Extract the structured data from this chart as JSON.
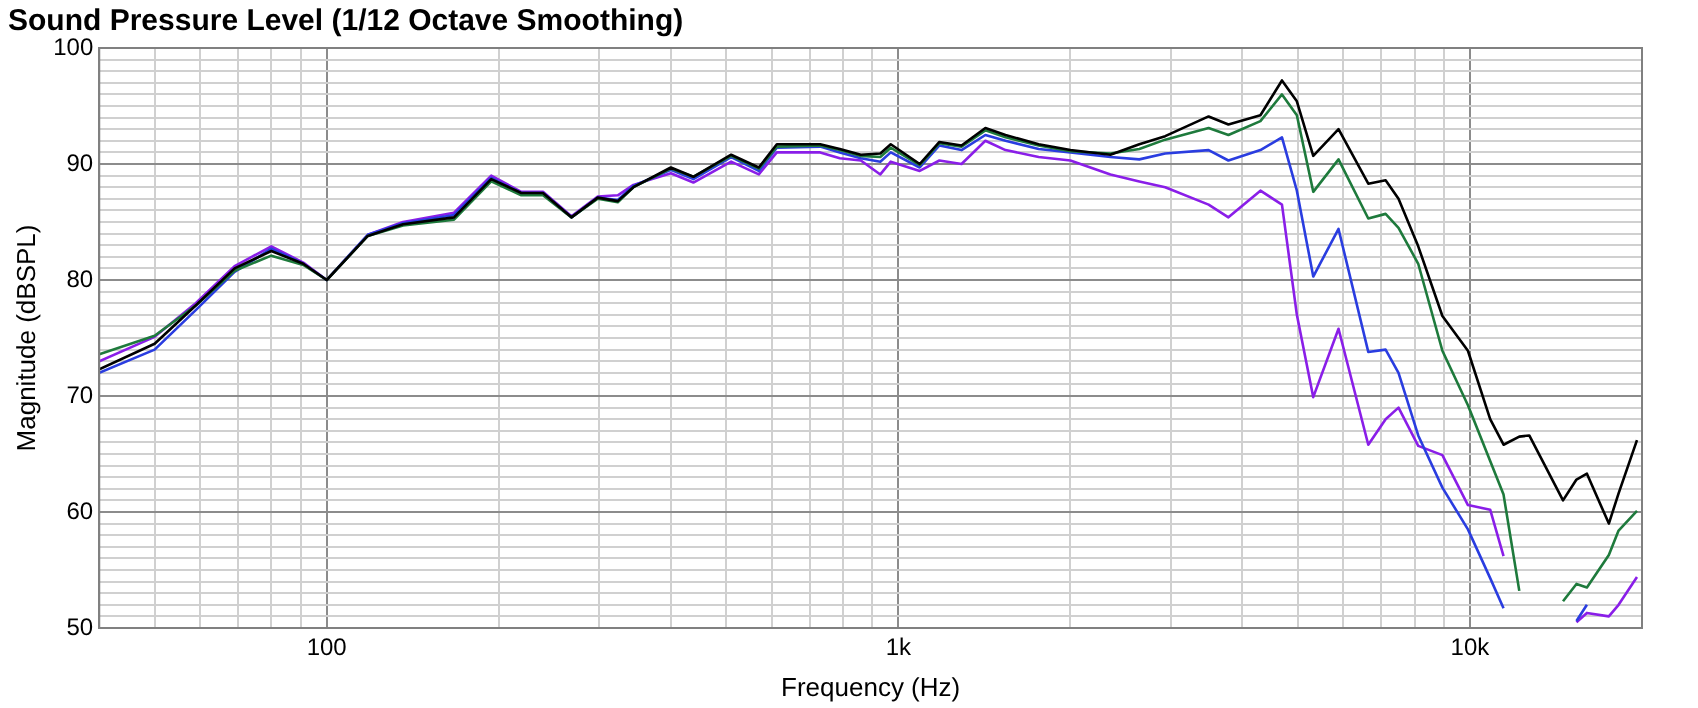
{
  "chart_data": {
    "type": "line",
    "title": "Sound Pressure Level (1/12 Octave Smoothing)",
    "xlabel": "Frequency (Hz)",
    "ylabel": "Magnitude (dBSPL)",
    "log": "x",
    "grid": true,
    "legend": false,
    "marker": "none",
    "line_style": "solid",
    "xlim": [
      40,
      20000
    ],
    "ylim": [
      50,
      100
    ],
    "xticks": [
      {
        "value": 40,
        "label": null
      },
      {
        "value": 50,
        "label": null
      },
      {
        "value": 60,
        "label": null
      },
      {
        "value": 70,
        "label": null
      },
      {
        "value": 80,
        "label": null
      },
      {
        "value": 90,
        "label": null
      },
      100,
      {
        "value": 200,
        "label": null
      },
      {
        "value": 300,
        "label": null
      },
      {
        "value": 400,
        "label": null
      },
      {
        "value": 500,
        "label": null
      },
      {
        "value": 600,
        "label": null
      },
      {
        "value": 700,
        "label": null
      },
      {
        "value": 800,
        "label": null
      },
      {
        "value": 900,
        "label": null
      },
      {
        "value": 1000,
        "label": "1k"
      },
      {
        "value": 2000,
        "label": null
      },
      {
        "value": 3000,
        "label": null
      },
      {
        "value": 4000,
        "label": null
      },
      {
        "value": 5000,
        "label": null
      },
      {
        "value": 6000,
        "label": null
      },
      {
        "value": 7000,
        "label": null
      },
      {
        "value": 8000,
        "label": null
      },
      {
        "value": 9000,
        "label": null
      },
      {
        "value": 10000,
        "label": "10k"
      },
      {
        "value": 20000,
        "label": null
      }
    ],
    "yticks": [
      50,
      {
        "value": 51,
        "label": null
      },
      {
        "value": 52,
        "label": null
      },
      {
        "value": 53,
        "label": null
      },
      {
        "value": 54,
        "label": null
      },
      {
        "value": 55,
        "label": null
      },
      {
        "value": 56,
        "label": null
      },
      {
        "value": 57,
        "label": null
      },
      {
        "value": 58,
        "label": null
      },
      {
        "value": 59,
        "label": null
      },
      60,
      {
        "value": 61,
        "label": null
      },
      {
        "value": 62,
        "label": null
      },
      {
        "value": 63,
        "label": null
      },
      {
        "value": 64,
        "label": null
      },
      {
        "value": 65,
        "label": null
      },
      {
        "value": 66,
        "label": null
      },
      {
        "value": 67,
        "label": null
      },
      {
        "value": 68,
        "label": null
      },
      {
        "value": 69,
        "label": null
      },
      70,
      {
        "value": 71,
        "label": null
      },
      {
        "value": 72,
        "label": null
      },
      {
        "value": 73,
        "label": null
      },
      {
        "value": 74,
        "label": null
      },
      {
        "value": 75,
        "label": null
      },
      {
        "value": 76,
        "label": null
      },
      {
        "value": 77,
        "label": null
      },
      {
        "value": 78,
        "label": null
      },
      {
        "value": 79,
        "label": null
      },
      80,
      {
        "value": 81,
        "label": null
      },
      {
        "value": 82,
        "label": null
      },
      {
        "value": 83,
        "label": null
      },
      {
        "value": 84,
        "label": null
      },
      {
        "value": 85,
        "label": null
      },
      {
        "value": 86,
        "label": null
      },
      {
        "value": 87,
        "label": null
      },
      {
        "value": 88,
        "label": null
      },
      {
        "value": 89,
        "label": null
      },
      90,
      {
        "value": 91,
        "label": null
      },
      {
        "value": 92,
        "label": null
      },
      {
        "value": 93,
        "label": null
      },
      {
        "value": 94,
        "label": null
      },
      {
        "value": 95,
        "label": null
      },
      {
        "value": 96,
        "label": null
      },
      {
        "value": 97,
        "label": null
      },
      {
        "value": 98,
        "label": null
      },
      {
        "value": 99,
        "label": null
      },
      100
    ],
    "x": [
      40,
      50,
      59,
      69,
      80,
      91,
      100,
      118,
      136,
      167,
      194,
      219,
      239,
      268,
      298,
      323,
      344,
      400,
      438,
      510,
      570,
      613,
      730,
      790,
      860,
      930,
      970,
      1090,
      1180,
      1290,
      1420,
      1540,
      1760,
      2000,
      2350,
      2640,
      2930,
      3490,
      3780,
      4300,
      4690,
      4980,
      5320,
      5890,
      6640,
      7120,
      7500,
      8120,
      8950,
      9920,
      10850,
      11450,
      12200,
      12700,
      14550,
      15360,
      16020,
      17500,
      18200,
      19600
    ],
    "series": [
      {
        "color": "#000000",
        "values": [
          72.3,
          74.5,
          77.8,
          81.0,
          82.5,
          81.4,
          80.0,
          83.8,
          84.8,
          85.4,
          88.7,
          87.5,
          87.5,
          85.4,
          87.1,
          86.8,
          88.0,
          89.7,
          88.9,
          90.8,
          89.7,
          91.7,
          91.7,
          91.3,
          90.8,
          90.9,
          91.7,
          90.0,
          91.9,
          91.6,
          93.1,
          92.5,
          91.7,
          91.2,
          90.8,
          91.7,
          92.4,
          94.1,
          93.4,
          94.2,
          97.2,
          95.4,
          90.7,
          93.0,
          88.3,
          88.6,
          87.0,
          82.9,
          76.9,
          73.9,
          68.0,
          65.8,
          66.5,
          66.6,
          61.0,
          62.8,
          63.3,
          59.0,
          61.6,
          66.2
        ]
      },
      {
        "color": "#1e7a3c",
        "values": [
          73.6,
          75.2,
          77.8,
          80.8,
          82.1,
          81.3,
          80.0,
          83.8,
          84.7,
          85.2,
          88.5,
          87.3,
          87.3,
          85.4,
          87.0,
          86.7,
          88.0,
          89.6,
          88.9,
          90.7,
          89.6,
          91.5,
          91.6,
          91.2,
          90.7,
          90.6,
          91.4,
          89.9,
          91.8,
          91.5,
          92.9,
          92.3,
          91.6,
          91.1,
          90.9,
          91.3,
          92.1,
          93.1,
          92.5,
          93.7,
          96.0,
          94.2,
          87.6,
          90.4,
          85.3,
          85.7,
          84.5,
          81.4,
          73.9,
          69.2,
          64.4,
          61.5,
          53.2,
          null,
          52.3,
          53.8,
          53.5,
          56.3,
          58.4,
          60.1
        ]
      },
      {
        "color": "#2a3de0",
        "values": [
          72.0,
          74.0,
          77.4,
          80.7,
          82.7,
          81.4,
          80.0,
          83.9,
          84.9,
          85.6,
          88.8,
          87.5,
          87.5,
          85.4,
          87.1,
          86.9,
          88.1,
          89.5,
          88.7,
          90.6,
          89.4,
          91.4,
          91.5,
          91.0,
          90.5,
          90.2,
          91.0,
          89.7,
          91.6,
          91.2,
          92.5,
          92.0,
          91.3,
          91.0,
          90.6,
          90.4,
          90.9,
          91.2,
          90.3,
          91.2,
          92.3,
          87.7,
          80.3,
          84.4,
          73.8,
          74.0,
          72.0,
          66.6,
          62.1,
          58.5,
          54.3,
          51.7,
          null,
          null,
          null,
          50.6,
          52.0,
          null,
          null,
          null
        ]
      },
      {
        "color": "#8a1ee8",
        "values": [
          73.0,
          75.1,
          78.0,
          81.2,
          82.9,
          81.5,
          80.0,
          83.9,
          85.0,
          85.8,
          89.0,
          87.6,
          87.6,
          85.5,
          87.2,
          87.3,
          88.2,
          89.2,
          88.4,
          90.2,
          89.1,
          91.0,
          91.0,
          90.5,
          90.3,
          89.1,
          90.2,
          89.4,
          90.3,
          90.0,
          92.0,
          91.2,
          90.6,
          90.3,
          89.1,
          88.5,
          88.0,
          86.5,
          85.4,
          87.7,
          86.5,
          77.0,
          69.9,
          75.8,
          65.8,
          68.0,
          69.0,
          65.7,
          64.9,
          60.6,
          60.2,
          56.2,
          null,
          null,
          null,
          50.5,
          51.3,
          51.0,
          52.0,
          54.4
        ]
      }
    ]
  }
}
